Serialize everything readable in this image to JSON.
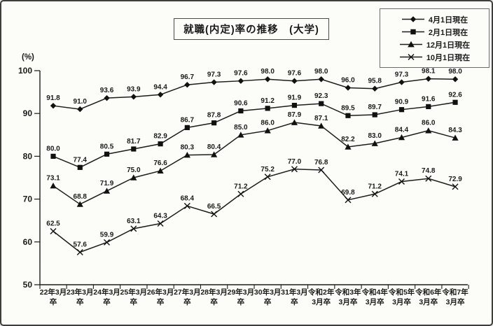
{
  "window": {
    "background_color": "#fcfcf9",
    "border_color": "#3d3d3d",
    "line_color": "#1c1c1c"
  },
  "chart_data": {
    "type": "line",
    "title": "就職(内定)率の推移　(大学)",
    "y_unit_label": "(%)",
    "xlabel": "",
    "ylabel": "",
    "ylim": [
      50,
      100
    ],
    "yticks": [
      100,
      90,
      80,
      70,
      60,
      50
    ],
    "grid": false,
    "legend_position": "top-right",
    "categories": [
      [
        "22年3月",
        "卒"
      ],
      [
        "23年3月",
        "卒"
      ],
      [
        "24年3月",
        "卒"
      ],
      [
        "25年3月",
        "卒"
      ],
      [
        "26年3月",
        "卒"
      ],
      [
        "27年3月",
        "卒"
      ],
      [
        "28年3月",
        "卒"
      ],
      [
        "29年3月",
        "卒"
      ],
      [
        "30年3月",
        "卒"
      ],
      [
        "31年3月",
        "卒"
      ],
      [
        "令和2年",
        "3月卒"
      ],
      [
        "令和3年",
        "3月卒"
      ],
      [
        "令和4年",
        "3月卒"
      ],
      [
        "令和5年",
        "3月卒"
      ],
      [
        "令和6年",
        "3月卒"
      ],
      [
        "令和7年",
        "3月卒"
      ]
    ],
    "series": [
      {
        "name": "4月1日現在",
        "marker": "diamond",
        "values": [
          91.8,
          91.0,
          93.6,
          93.9,
          94.4,
          96.7,
          97.3,
          97.6,
          98.0,
          97.6,
          98.0,
          96.0,
          95.8,
          97.3,
          98.1,
          98.0
        ]
      },
      {
        "name": "2月1日現在",
        "marker": "square",
        "values": [
          80.0,
          77.4,
          80.5,
          81.7,
          82.9,
          86.7,
          87.8,
          90.6,
          91.2,
          91.9,
          92.3,
          89.5,
          89.7,
          90.9,
          91.6,
          92.6
        ]
      },
      {
        "name": "12月1日現在",
        "marker": "triangle",
        "values": [
          73.1,
          68.8,
          71.9,
          75.0,
          76.6,
          80.3,
          80.4,
          85.0,
          86.0,
          87.9,
          87.1,
          82.2,
          83.0,
          84.4,
          86.0,
          84.3
        ]
      },
      {
        "name": "10月1日現在",
        "marker": "x",
        "values": [
          62.5,
          57.6,
          59.9,
          63.1,
          64.3,
          68.4,
          66.5,
          71.2,
          75.2,
          77.0,
          76.8,
          69.8,
          71.2,
          74.1,
          74.8,
          72.9
        ]
      }
    ]
  }
}
